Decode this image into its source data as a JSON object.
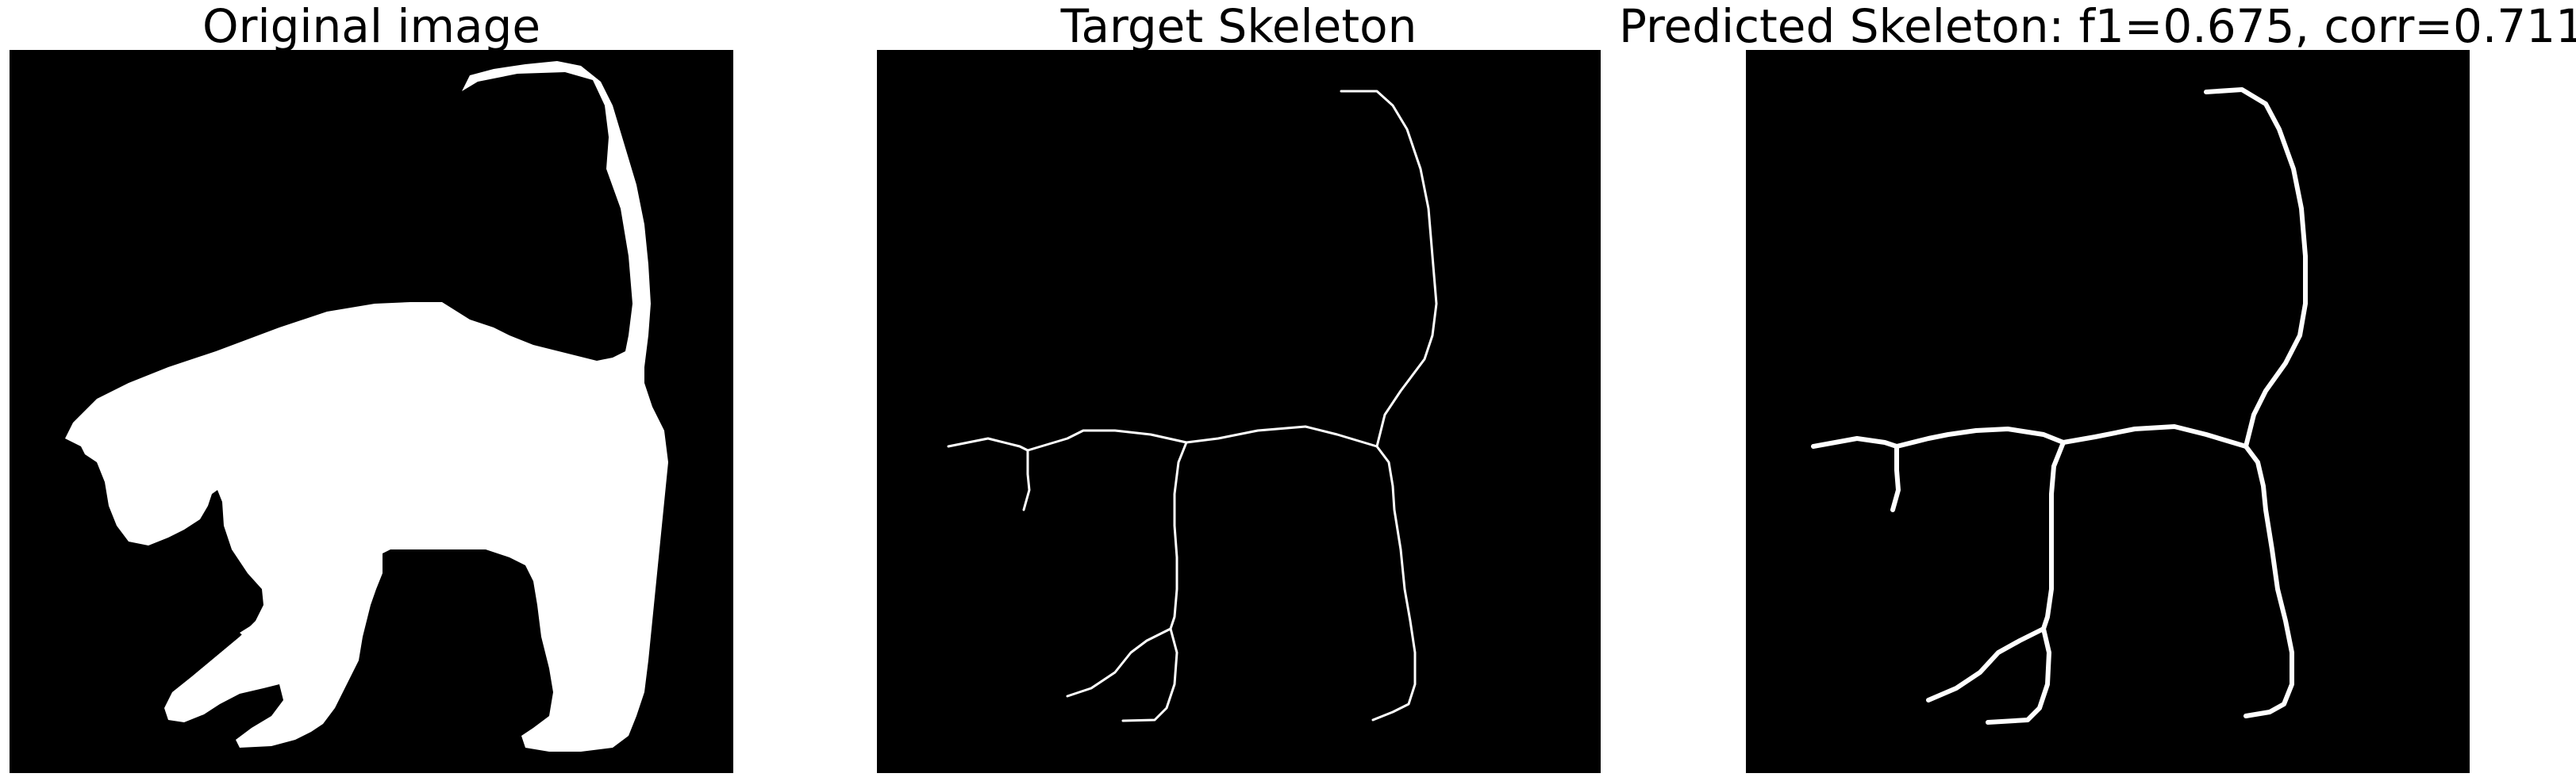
{
  "panels": [
    {
      "title": "Original image"
    },
    {
      "title": "Target Skeleton"
    },
    {
      "title": "Predicted Skeleton: f1=0.675, corr=0.711"
    }
  ],
  "colors": {
    "background": "#000000",
    "foreground": "#ffffff",
    "page": "#ffffff"
  }
}
